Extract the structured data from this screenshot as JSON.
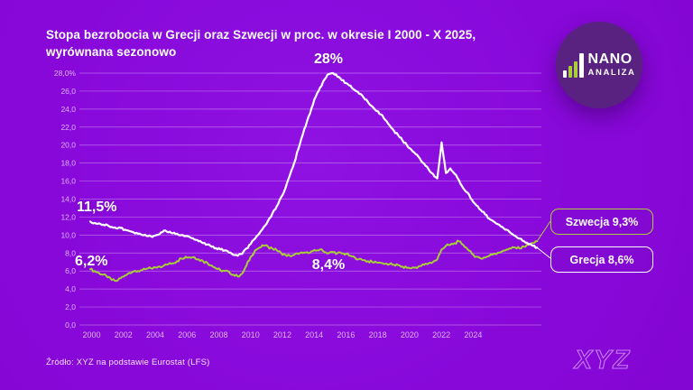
{
  "colors": {
    "background": "#8808da",
    "greece_line": "#ffffff",
    "sweden_line": "#a8ce38",
    "gridline": "rgba(255,240,255,0.42)",
    "tick_label": "#ddb3f5",
    "logo_circle": "#5a2280",
    "brand_outline": "#c77ff2"
  },
  "header": {
    "title_line1": "Stopa bezrobocia w Grecji oraz Szwecji w proc. w okresie I 2000 - X 2025,",
    "title_line2": "wyrównana sezonowo"
  },
  "logo": {
    "line1": "NANO",
    "line2": "ANALIZA"
  },
  "annotations": {
    "greece_peak": "28%",
    "greece_start": "11,5%",
    "sweden_start": "6,2%",
    "sweden_mid": "8,4%"
  },
  "end_labels": {
    "sweden": "Szwecja 9,3%",
    "greece": "Grecja 8,6%"
  },
  "footer": {
    "source": "Źródło: XYZ na podstawie Eurostat (LFS)",
    "brand": "XYZ"
  },
  "chart_data": {
    "type": "line",
    "title": "Stopa bezrobocia w Grecji oraz Szwecji w proc. w okresie I 2000 - X 2025, wyrównana sezonowo",
    "xlabel": "",
    "ylabel": "",
    "ylim": [
      0,
      28
    ],
    "x_range_years": [
      2000,
      2025.75
    ],
    "grid": "horizontal",
    "x_tick_labels": [
      "2000",
      "2002",
      "2004",
      "2006",
      "2008",
      "2010",
      "2012",
      "2014",
      "2016",
      "2018",
      "2020",
      "2022",
      "2024"
    ],
    "y_ticks": [
      {
        "v": 28,
        "label": "28,0%"
      },
      {
        "v": 26,
        "label": "26,0"
      },
      {
        "v": 24,
        "label": "24,0"
      },
      {
        "v": 22,
        "label": "22,0"
      },
      {
        "v": 20,
        "label": "20,0"
      },
      {
        "v": 18,
        "label": "18,0"
      },
      {
        "v": 16,
        "label": "16,0"
      },
      {
        "v": 14,
        "label": "14,0"
      },
      {
        "v": 12,
        "label": "12,0"
      },
      {
        "v": 10,
        "label": "10,0"
      },
      {
        "v": 8,
        "label": "8,0"
      },
      {
        "v": 6,
        "label": "6,0"
      },
      {
        "v": 4,
        "label": "4,0"
      },
      {
        "v": 2,
        "label": "2,0"
      },
      {
        "v": 0,
        "label": "0,0"
      }
    ],
    "series": [
      {
        "name": "Szwecja",
        "color": "#a8ce38",
        "last_value_label": "Szwecja 9,3%",
        "x_start": 2000.0,
        "x_step_years": 0.25,
        "values": [
          6.2,
          6.0,
          5.8,
          5.6,
          5.3,
          5.0,
          4.9,
          5.2,
          5.5,
          5.8,
          5.95,
          6.0,
          6.1,
          6.25,
          6.3,
          6.4,
          6.5,
          6.6,
          6.75,
          6.85,
          7.1,
          7.4,
          7.6,
          7.5,
          7.55,
          7.3,
          7.1,
          6.9,
          6.6,
          6.3,
          6.1,
          6.0,
          5.9,
          5.6,
          5.4,
          5.7,
          6.6,
          7.6,
          8.3,
          8.6,
          8.8,
          8.7,
          8.5,
          8.3,
          8.0,
          7.8,
          7.7,
          7.8,
          7.9,
          8.0,
          8.1,
          8.2,
          8.25,
          8.4,
          8.1,
          8.0,
          8.1,
          8.0,
          7.95,
          7.9,
          7.7,
          7.5,
          7.35,
          7.2,
          7.1,
          7.0,
          6.95,
          6.9,
          6.8,
          6.75,
          6.7,
          6.65,
          6.5,
          6.35,
          6.3,
          6.4,
          6.55,
          6.7,
          6.85,
          7.0,
          7.3,
          8.4,
          8.8,
          8.9,
          9.1,
          9.3,
          8.9,
          8.4,
          7.9,
          7.6,
          7.4,
          7.5,
          7.7,
          7.9,
          8.05,
          8.2,
          8.4,
          8.5,
          8.6,
          8.5,
          8.7,
          8.9,
          9.1,
          9.3
        ]
      },
      {
        "name": "Grecja",
        "color": "#ffffff",
        "last_value_label": "Grecja 8,6%",
        "x_start": 2000.0,
        "x_step_years": 0.25,
        "values": [
          11.5,
          11.35,
          11.3,
          11.15,
          11.1,
          10.9,
          10.75,
          10.8,
          10.6,
          10.45,
          10.3,
          10.15,
          10.0,
          9.9,
          9.85,
          9.95,
          10.1,
          10.5,
          10.3,
          10.2,
          10.15,
          10.0,
          9.9,
          9.75,
          9.5,
          9.3,
          9.1,
          8.95,
          8.7,
          8.55,
          8.4,
          8.3,
          8.05,
          7.8,
          7.7,
          7.9,
          8.5,
          9.0,
          9.6,
          10.2,
          10.9,
          11.6,
          12.4,
          13.2,
          14.2,
          15.2,
          16.6,
          18.0,
          19.6,
          21.2,
          22.7,
          24.1,
          25.4,
          26.4,
          27.3,
          27.9,
          28.0,
          27.6,
          27.2,
          26.9,
          26.6,
          26.1,
          25.7,
          25.3,
          24.8,
          24.3,
          23.8,
          23.4,
          22.8,
          22.2,
          21.6,
          21.1,
          20.5,
          20.0,
          19.5,
          19.0,
          18.5,
          17.9,
          17.3,
          16.8,
          16.3,
          20.3,
          16.9,
          17.4,
          16.8,
          16.1,
          15.2,
          14.7,
          13.9,
          13.3,
          12.8,
          12.3,
          11.8,
          11.5,
          11.2,
          10.9,
          10.6,
          10.2,
          9.9,
          9.6,
          9.3,
          9.0,
          8.8,
          8.6
        ]
      }
    ],
    "annotations": [
      {
        "text": "28%",
        "series": "Grecja",
        "year": 2014.0,
        "value": 28.0
      },
      {
        "text": "11,5%",
        "series": "Grecja",
        "year": 2000.0,
        "value": 11.5
      },
      {
        "text": "6,2%",
        "series": "Szwecja",
        "year": 2000.0,
        "value": 6.2
      },
      {
        "text": "8,4%",
        "series": "Szwecja",
        "year": 2013.3,
        "value": 8.4
      }
    ]
  }
}
